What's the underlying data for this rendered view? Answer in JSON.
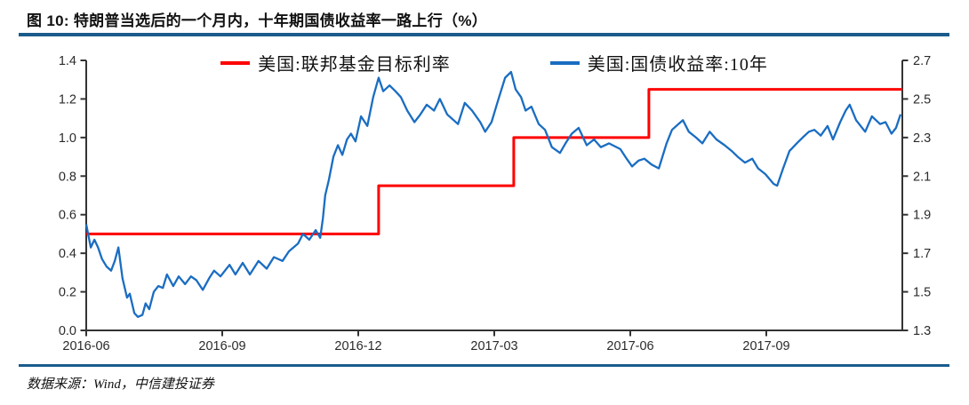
{
  "header": {
    "title": "图 10: 特朗普当选后的一个月内，十年期国债收益率一路上行（%）"
  },
  "footer": {
    "source": "数据来源：Wind，中信建投证券"
  },
  "colors": {
    "rule": "#1A5B8C",
    "axis": "#333333",
    "fed_funds_red": "#FE0000",
    "treasury_blue": "#1A6DC2"
  },
  "chart_data": {
    "type": "line",
    "title": "特朗普当选后的一个月内，十年期国债收益率一路上行（%）",
    "x_unit": "months since 2016-06",
    "x_range": [
      0,
      18
    ],
    "x_ticks": [
      [
        0,
        "2016-06"
      ],
      [
        3,
        "2016-09"
      ],
      [
        6,
        "2016-12"
      ],
      [
        9,
        "2017-03"
      ],
      [
        12,
        "2017-06"
      ],
      [
        15,
        "2017-09"
      ]
    ],
    "left_axis": {
      "min": 0.0,
      "max": 1.4,
      "step": 0.2
    },
    "right_axis": {
      "min": 1.3,
      "max": 2.7,
      "step": 0.2
    },
    "legend_position": "top",
    "grid": false,
    "series": [
      {
        "name": "美国:联邦基金目标利率",
        "axis": "left",
        "color": "#FE0000",
        "width": 3,
        "points": [
          [
            0,
            0.5
          ],
          [
            6.45,
            0.5
          ],
          [
            6.45,
            0.75
          ],
          [
            9.43,
            0.75
          ],
          [
            9.43,
            1.0
          ],
          [
            12.41,
            1.0
          ],
          [
            12.41,
            1.25
          ],
          [
            18,
            1.25
          ]
        ]
      },
      {
        "name": "美国:国债收益率:10年",
        "axis": "right",
        "color": "#1A6DC2",
        "width": 2.3,
        "points": [
          [
            0,
            1.85
          ],
          [
            0.1,
            1.73
          ],
          [
            0.18,
            1.77
          ],
          [
            0.26,
            1.73
          ],
          [
            0.35,
            1.67
          ],
          [
            0.45,
            1.63
          ],
          [
            0.55,
            1.61
          ],
          [
            0.63,
            1.66
          ],
          [
            0.71,
            1.73
          ],
          [
            0.8,
            1.57
          ],
          [
            0.9,
            1.47
          ],
          [
            0.96,
            1.49
          ],
          [
            1.06,
            1.39
          ],
          [
            1.14,
            1.37
          ],
          [
            1.24,
            1.38
          ],
          [
            1.31,
            1.44
          ],
          [
            1.39,
            1.41
          ],
          [
            1.49,
            1.5
          ],
          [
            1.59,
            1.53
          ],
          [
            1.69,
            1.52
          ],
          [
            1.78,
            1.59
          ],
          [
            1.92,
            1.53
          ],
          [
            2.04,
            1.58
          ],
          [
            2.18,
            1.54
          ],
          [
            2.31,
            1.58
          ],
          [
            2.43,
            1.56
          ],
          [
            2.57,
            1.51
          ],
          [
            2.71,
            1.57
          ],
          [
            2.82,
            1.61
          ],
          [
            2.96,
            1.58
          ],
          [
            3.16,
            1.64
          ],
          [
            3.29,
            1.59
          ],
          [
            3.45,
            1.65
          ],
          [
            3.61,
            1.59
          ],
          [
            3.8,
            1.66
          ],
          [
            3.98,
            1.62
          ],
          [
            4.14,
            1.68
          ],
          [
            4.33,
            1.66
          ],
          [
            4.47,
            1.71
          ],
          [
            4.67,
            1.75
          ],
          [
            4.78,
            1.8
          ],
          [
            4.92,
            1.77
          ],
          [
            5.06,
            1.82
          ],
          [
            5.16,
            1.78
          ],
          [
            5.22,
            1.88
          ],
          [
            5.27,
            2.0
          ],
          [
            5.35,
            2.08
          ],
          [
            5.45,
            2.2
          ],
          [
            5.55,
            2.26
          ],
          [
            5.65,
            2.21
          ],
          [
            5.75,
            2.29
          ],
          [
            5.84,
            2.32
          ],
          [
            5.94,
            2.28
          ],
          [
            6.06,
            2.41
          ],
          [
            6.2,
            2.36
          ],
          [
            6.33,
            2.51
          ],
          [
            6.45,
            2.61
          ],
          [
            6.55,
            2.54
          ],
          [
            6.69,
            2.57
          ],
          [
            6.82,
            2.54
          ],
          [
            6.94,
            2.51
          ],
          [
            7.08,
            2.44
          ],
          [
            7.24,
            2.38
          ],
          [
            7.37,
            2.42
          ],
          [
            7.51,
            2.47
          ],
          [
            7.67,
            2.44
          ],
          [
            7.8,
            2.5
          ],
          [
            7.96,
            2.42
          ],
          [
            8.2,
            2.37
          ],
          [
            8.35,
            2.48
          ],
          [
            8.51,
            2.44
          ],
          [
            8.69,
            2.38
          ],
          [
            8.8,
            2.33
          ],
          [
            8.94,
            2.38
          ],
          [
            9.08,
            2.49
          ],
          [
            9.24,
            2.61
          ],
          [
            9.37,
            2.64
          ],
          [
            9.47,
            2.55
          ],
          [
            9.59,
            2.51
          ],
          [
            9.69,
            2.44
          ],
          [
            9.82,
            2.46
          ],
          [
            9.98,
            2.37
          ],
          [
            10.12,
            2.34
          ],
          [
            10.27,
            2.25
          ],
          [
            10.45,
            2.22
          ],
          [
            10.57,
            2.27
          ],
          [
            10.71,
            2.32
          ],
          [
            10.86,
            2.35
          ],
          [
            11.04,
            2.26
          ],
          [
            11.2,
            2.29
          ],
          [
            11.35,
            2.25
          ],
          [
            11.53,
            2.27
          ],
          [
            11.78,
            2.24
          ],
          [
            11.92,
            2.19
          ],
          [
            12.04,
            2.15
          ],
          [
            12.18,
            2.18
          ],
          [
            12.31,
            2.19
          ],
          [
            12.47,
            2.16
          ],
          [
            12.63,
            2.14
          ],
          [
            12.8,
            2.27
          ],
          [
            12.92,
            2.34
          ],
          [
            13.06,
            2.37
          ],
          [
            13.16,
            2.39
          ],
          [
            13.29,
            2.33
          ],
          [
            13.45,
            2.3
          ],
          [
            13.59,
            2.27
          ],
          [
            13.75,
            2.33
          ],
          [
            13.9,
            2.29
          ],
          [
            14.08,
            2.26
          ],
          [
            14.24,
            2.23
          ],
          [
            14.37,
            2.2
          ],
          [
            14.53,
            2.17
          ],
          [
            14.69,
            2.19
          ],
          [
            14.82,
            2.14
          ],
          [
            14.98,
            2.11
          ],
          [
            15.16,
            2.06
          ],
          [
            15.24,
            2.05
          ],
          [
            15.37,
            2.14
          ],
          [
            15.51,
            2.23
          ],
          [
            15.67,
            2.27
          ],
          [
            15.8,
            2.3
          ],
          [
            15.94,
            2.33
          ],
          [
            16.06,
            2.34
          ],
          [
            16.2,
            2.31
          ],
          [
            16.35,
            2.36
          ],
          [
            16.47,
            2.29
          ],
          [
            16.63,
            2.38
          ],
          [
            16.75,
            2.44
          ],
          [
            16.84,
            2.47
          ],
          [
            16.98,
            2.39
          ],
          [
            17.18,
            2.33
          ],
          [
            17.33,
            2.41
          ],
          [
            17.51,
            2.37
          ],
          [
            17.63,
            2.38
          ],
          [
            17.76,
            2.32
          ],
          [
            17.86,
            2.35
          ],
          [
            17.96,
            2.42
          ]
        ]
      }
    ]
  }
}
